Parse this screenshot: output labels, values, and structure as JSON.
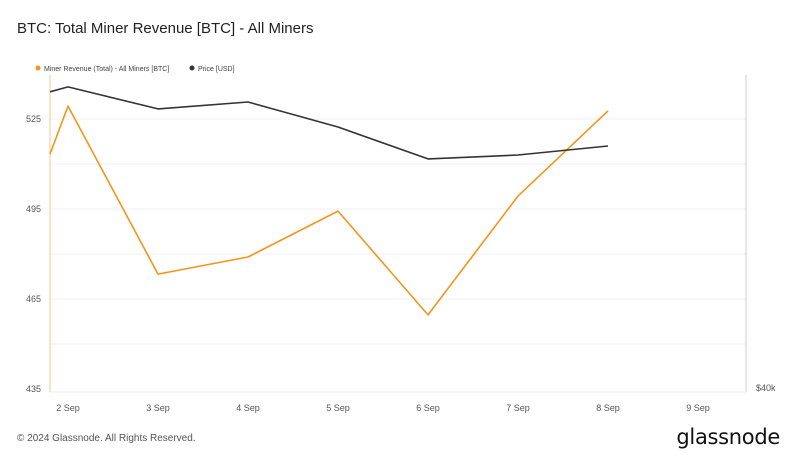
{
  "title": "BTC: Total Miner Revenue [BTC] - All Miners",
  "footer": "© 2024 Glassnode. All Rights Reserved.",
  "logo": "glassnode",
  "chart_data": {
    "type": "line",
    "title": "BTC: Total Miner Revenue [BTC] - All Miners",
    "x": [
      "1 Sep 20:00",
      "2 Sep",
      "3 Sep",
      "4 Sep",
      "5 Sep",
      "6 Sep",
      "7 Sep",
      "8 Sep"
    ],
    "x_ticks": [
      "2 Sep",
      "3 Sep",
      "4 Sep",
      "5 Sep",
      "6 Sep",
      "7 Sep",
      "8 Sep",
      "9 Sep"
    ],
    "y_left_ticks": [
      525,
      495,
      465,
      435
    ],
    "y_left_range": [
      435,
      530
    ],
    "y_right_ticks": [
      "$40k"
    ],
    "legend_position": "top-left",
    "grid": true,
    "series": [
      {
        "name": "Miner Revenue (Total) - All Miners [BTC]",
        "color": "#f7931a",
        "axis": "left",
        "values": [
          513.3,
          529.3,
          473.3,
          479,
          494.3,
          459.7,
          499.3,
          527.7
        ]
      },
      {
        "name": "Price [USD]",
        "color": "#333333",
        "axis": "right",
        "values": [
          58780,
          59090,
          57700,
          58140,
          56560,
          54540,
          54790,
          55360
        ]
      }
    ]
  }
}
